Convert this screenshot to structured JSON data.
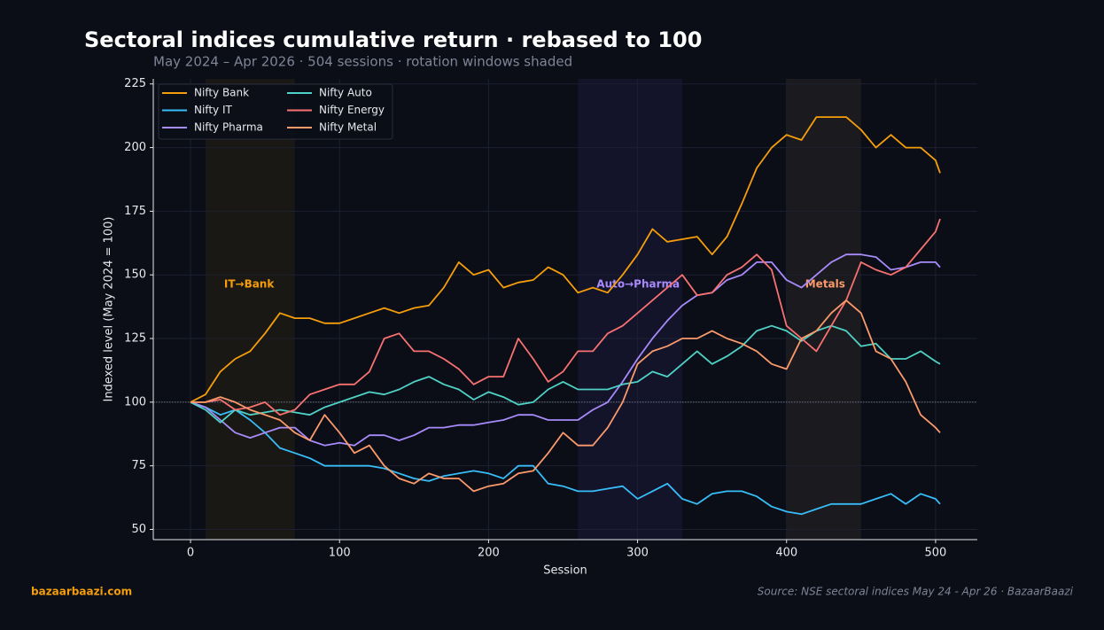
{
  "chart_data": {
    "type": "line",
    "title": "Sectoral indices cumulative return · rebased to 100",
    "subtitle": "May 2024 – Apr 2026  ·  504 sessions  ·  rotation windows shaded",
    "x_label": "Session",
    "y_label": "Indexed level (May 2024 = 100)",
    "footer_left": "bazaarbaazi.com",
    "footer_right": "Source: NSE sectoral indices May 24 - Apr 26  ·  BazaarBaazi",
    "xlim": [
      -25,
      528
    ],
    "ylim": [
      46,
      227
    ],
    "xticks": [
      0,
      100,
      200,
      300,
      400,
      500
    ],
    "yticks": [
      50,
      75,
      100,
      125,
      150,
      175,
      200,
      225
    ],
    "grid": true,
    "legend": "upper left",
    "reference_line": 100,
    "windows": [
      {
        "start": 10,
        "end": 70,
        "label": "IT→Bank",
        "color": "#f59e0b",
        "fill": "#1a1814"
      },
      {
        "start": 260,
        "end": 330,
        "label": "Auto→Pharma",
        "color": "#a78bfa",
        "fill": "#13132a"
      },
      {
        "start": 400,
        "end": 450,
        "label": "Metals",
        "color": "#fb9a6b",
        "fill": "#1b1a1e"
      }
    ],
    "x": [
      0,
      10,
      20,
      30,
      40,
      50,
      60,
      70,
      80,
      90,
      100,
      110,
      120,
      130,
      140,
      150,
      160,
      170,
      180,
      190,
      200,
      210,
      220,
      230,
      240,
      250,
      260,
      270,
      280,
      290,
      300,
      310,
      320,
      330,
      340,
      350,
      360,
      370,
      380,
      390,
      400,
      410,
      420,
      430,
      440,
      450,
      460,
      470,
      480,
      490,
      500,
      503
    ],
    "series": [
      {
        "name": "Nifty Bank",
        "color": "#f59e0b",
        "values": [
          100,
          103,
          112,
          117,
          120,
          127,
          135,
          133,
          133,
          131,
          131,
          133,
          135,
          137,
          135,
          137,
          138,
          145,
          155,
          150,
          152,
          145,
          147,
          148,
          153,
          150,
          143,
          145,
          143,
          150,
          158,
          168,
          163,
          164,
          165,
          158,
          165,
          178,
          192,
          200,
          205,
          203,
          212,
          212,
          212,
          207,
          200,
          205,
          200,
          200,
          195,
          190
        ]
      },
      {
        "name": "Nifty IT",
        "color": "#38bdf8",
        "values": [
          100,
          98,
          95,
          97,
          93,
          88,
          82,
          80,
          78,
          75,
          75,
          75,
          75,
          74,
          72,
          70,
          69,
          71,
          72,
          73,
          72,
          70,
          75,
          75,
          68,
          67,
          65,
          65,
          66,
          67,
          62,
          65,
          68,
          62,
          60,
          64,
          65,
          65,
          63,
          59,
          57,
          56,
          58,
          60,
          60,
          60,
          62,
          64,
          60,
          64,
          62,
          60
        ]
      },
      {
        "name": "Nifty Pharma",
        "color": "#a78bfa",
        "values": [
          100,
          98,
          93,
          88,
          86,
          88,
          90,
          90,
          85,
          83,
          84,
          83,
          87,
          87,
          85,
          87,
          90,
          90,
          91,
          91,
          92,
          93,
          95,
          95,
          93,
          93,
          93,
          97,
          100,
          108,
          117,
          125,
          132,
          138,
          142,
          143,
          148,
          150,
          155,
          155,
          148,
          145,
          150,
          155,
          158,
          158,
          157,
          152,
          153,
          155,
          155,
          153
        ]
      },
      {
        "name": "Nifty Auto",
        "color": "#4fd1c5",
        "values": [
          100,
          97,
          92,
          97,
          95,
          96,
          97,
          96,
          95,
          98,
          100,
          102,
          104,
          103,
          105,
          108,
          110,
          107,
          105,
          101,
          104,
          102,
          99,
          100,
          105,
          108,
          105,
          105,
          105,
          107,
          108,
          112,
          110,
          115,
          120,
          115,
          118,
          122,
          128,
          130,
          128,
          124,
          128,
          130,
          128,
          122,
          123,
          117,
          117,
          120,
          116,
          115
        ]
      },
      {
        "name": "Nifty Energy",
        "color": "#f87171",
        "values": [
          100,
          100,
          101,
          97,
          98,
          100,
          95,
          97,
          103,
          105,
          107,
          107,
          112,
          125,
          127,
          120,
          120,
          117,
          113,
          107,
          110,
          110,
          125,
          117,
          108,
          112,
          120,
          120,
          127,
          130,
          135,
          140,
          145,
          150,
          142,
          143,
          150,
          153,
          158,
          152,
          130,
          125,
          120,
          130,
          140,
          155,
          152,
          150,
          153,
          160,
          167,
          172
        ]
      },
      {
        "name": "Nifty Metal",
        "color": "#fb9a6b",
        "values": [
          100,
          100,
          102,
          100,
          97,
          95,
          93,
          88,
          85,
          95,
          88,
          80,
          83,
          75,
          70,
          68,
          72,
          70,
          70,
          65,
          67,
          68,
          72,
          73,
          80,
          88,
          83,
          83,
          90,
          100,
          115,
          120,
          122,
          125,
          125,
          128,
          125,
          123,
          120,
          115,
          113,
          125,
          128,
          135,
          140,
          135,
          120,
          117,
          108,
          95,
          90,
          88
        ]
      }
    ]
  }
}
